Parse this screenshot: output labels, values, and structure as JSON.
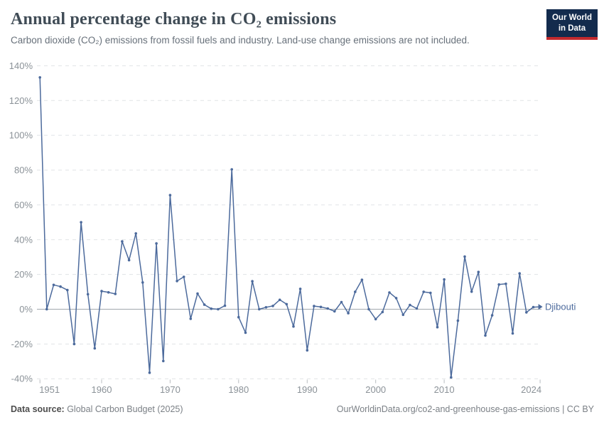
{
  "header": {
    "title": "Annual percentage change in CO₂ emissions",
    "subtitle": "Carbon dioxide (CO₂) emissions from fossil fuels and industry. Land-use change emissions are not included.",
    "logo_line1": "Our World",
    "logo_line2": "in Data",
    "logo_background_color": "#132b4d",
    "logo_bar_color": "#c32a2e"
  },
  "chart_data": {
    "type": "line",
    "title": "Annual percentage change in CO₂ emissions",
    "series_label": "Djibouti",
    "color": "#4c6a9c",
    "xlabel": "",
    "ylabel": "",
    "ylim": [
      -40,
      140
    ],
    "xlim": [
      1951,
      2024
    ],
    "grid": true,
    "legend_position": "end-of-line",
    "y_ticks": [
      140,
      120,
      100,
      80,
      60,
      40,
      20,
      0,
      -20,
      -40
    ],
    "y_tick_suffix": "%",
    "x_ticks": [
      1951,
      1960,
      1970,
      1980,
      1990,
      2000,
      2010,
      2024
    ],
    "x": [
      1951,
      1952,
      1953,
      1954,
      1955,
      1956,
      1957,
      1958,
      1959,
      1960,
      1961,
      1962,
      1963,
      1964,
      1965,
      1966,
      1967,
      1968,
      1969,
      1970,
      1971,
      1972,
      1973,
      1974,
      1975,
      1976,
      1977,
      1978,
      1979,
      1980,
      1981,
      1982,
      1983,
      1984,
      1985,
      1986,
      1987,
      1988,
      1989,
      1990,
      1991,
      1992,
      1993,
      1994,
      1995,
      1996,
      1997,
      1998,
      1999,
      2000,
      2001,
      2002,
      2003,
      2004,
      2005,
      2006,
      2007,
      2008,
      2009,
      2010,
      2011,
      2012,
      2013,
      2014,
      2015,
      2016,
      2017,
      2018,
      2019,
      2020,
      2021,
      2022,
      2023,
      2024
    ],
    "values": [
      133.3,
      0,
      14,
      13,
      11,
      -20,
      50,
      8.6,
      -22.5,
      10.4,
      9.7,
      8.8,
      39,
      28.2,
      43.6,
      15.4,
      -36.5,
      37.8,
      -29.8,
      65.6,
      16.2,
      18.6,
      -5.5,
      9,
      2.6,
      0.3,
      0,
      2,
      80.4,
      -4.6,
      -13.5,
      16.1,
      0,
      1.1,
      1.9,
      5.4,
      2.9,
      -9.9,
      11.7,
      -23.6,
      1.8,
      1.3,
      0.4,
      -1.2,
      4.1,
      -2.3,
      10,
      16.9,
      0,
      -5.7,
      -1.6,
      9.6,
      6.4,
      -3.2,
      2.4,
      0.4,
      10,
      9.4,
      -10.3,
      17.1,
      -39.2,
      -6.6,
      30.3,
      10.1,
      21.4,
      -15.1,
      -3.5,
      14.2,
      14.6,
      -13.9,
      20.6,
      -1.8,
      1.2,
      1.4
    ]
  },
  "footer": {
    "source_label": "Data source:",
    "source_value": " Global Carbon Budget (2025)",
    "link_text": "OurWorldinData.org/co2-and-greenhouse-gas-emissions | CC BY"
  }
}
